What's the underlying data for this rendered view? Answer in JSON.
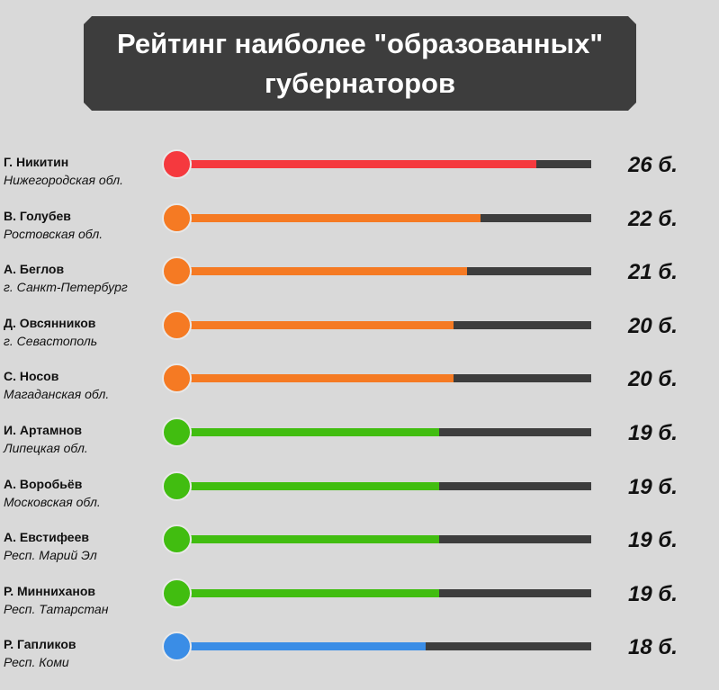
{
  "header": {
    "title": "Рейтинг наиболее \"образованных\"\nгубернаторов"
  },
  "unit_suffix": " б.",
  "chart_data": {
    "type": "bar",
    "orientation": "horizontal",
    "title": "Рейтинг наиболее \"образованных\" губернаторов",
    "xlim": [
      0,
      30
    ],
    "categories": [
      "Г. Никитин",
      "В. Голубев",
      "А. Беглов",
      "Д. Овсянников",
      "С. Носов",
      "И. Артамнов",
      "А. Воробьёв",
      "А. Евстифеев",
      "Р. Минниханов",
      "Р. Гапликов"
    ],
    "regions": [
      "Нижегородская обл.",
      "Ростовская обл.",
      "г. Санкт-Петербург",
      "г. Севастополь",
      "Магаданская обл.",
      "Липецкая обл.",
      "Московская обл.",
      "Респ. Марий Эл",
      "Респ. Татарстан",
      "Респ. Коми"
    ],
    "values": [
      26,
      22,
      21,
      20,
      20,
      19,
      19,
      19,
      19,
      18
    ],
    "value_labels": [
      "26 б.",
      "22 б.",
      "21 б.",
      "20 б.",
      "20 б.",
      "19 б.",
      "19 б.",
      "19 б.",
      "19 б.",
      "18 б."
    ],
    "colors": [
      "#f5393e",
      "#f57a23",
      "#f57a23",
      "#f57a23",
      "#f57a23",
      "#41bd10",
      "#41bd10",
      "#41bd10",
      "#41bd10",
      "#3a8de6"
    ],
    "track_color": "#3d3d3d",
    "grid": false,
    "legend": "none"
  }
}
